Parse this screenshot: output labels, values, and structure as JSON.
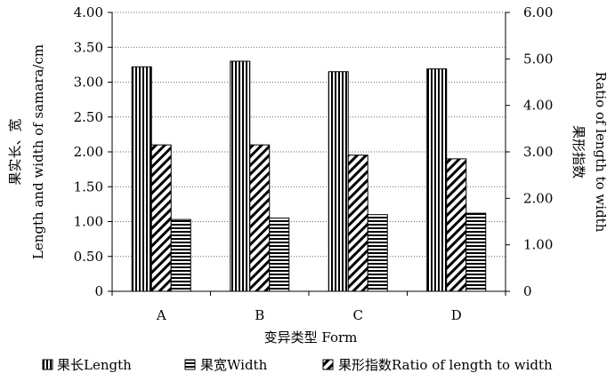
{
  "chart_data": {
    "type": "bar",
    "categories": [
      "A",
      "B",
      "C",
      "D"
    ],
    "series": [
      {
        "name": "果长Length",
        "axis": "left",
        "pattern": "vertical-stripes",
        "values": [
          3.22,
          3.3,
          3.15,
          3.19
        ]
      },
      {
        "name": "果形指数Ratio of length to width",
        "axis": "right",
        "pattern": "diagonal-stripes",
        "values": [
          3.15,
          3.15,
          2.93,
          2.85
        ]
      },
      {
        "name": "果宽Width",
        "axis": "left",
        "pattern": "horizontal-stripes",
        "values": [
          1.03,
          1.05,
          1.1,
          1.12
        ]
      }
    ],
    "xlabel": "变异类型 Form",
    "ylabel_cn": "果实长、宽",
    "ylabel_en": "Length and width of samara/cm",
    "y2label_cn": "果形指数",
    "y2label_en": "Ratio of length to width",
    "ylim": [
      0,
      4.0
    ],
    "y2lim": [
      0,
      6.0
    ],
    "yticks": [
      "0",
      "0.50",
      "1.00",
      "1.50",
      "2.00",
      "2.50",
      "3.00",
      "3.50",
      "4.00"
    ],
    "y2ticks": [
      "0",
      "1.00",
      "2.00",
      "3.00",
      "4.00",
      "5.00",
      "6.00"
    ],
    "grid": true,
    "legend_position": "bottom",
    "legend": [
      {
        "label": "果长Length",
        "pattern": "vertical-stripes"
      },
      {
        "label": "果宽Width",
        "pattern": "horizontal-stripes"
      },
      {
        "label": "果形指数Ratio of length to width",
        "pattern": "diagonal-stripes"
      }
    ]
  }
}
